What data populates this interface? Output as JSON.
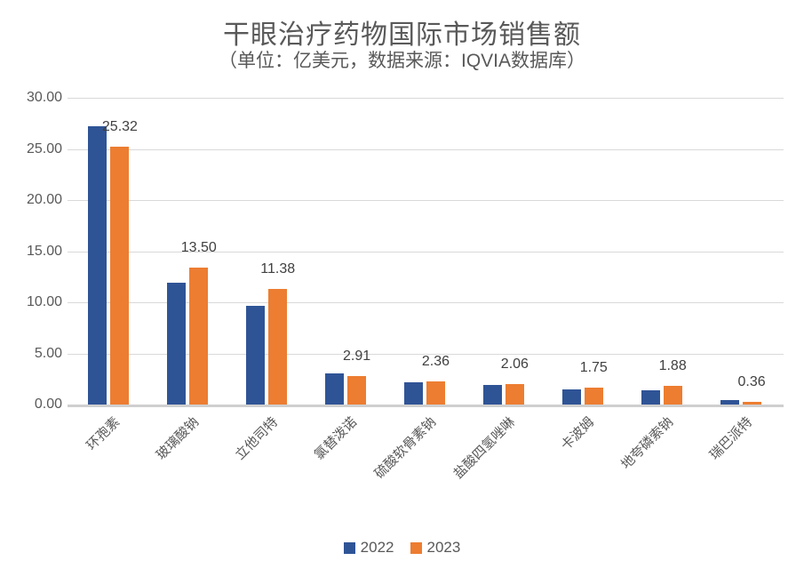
{
  "chart_data": {
    "type": "bar",
    "title": "干眼治疗药物国际市场销售额",
    "subtitle": "（单位：亿美元，数据来源：IQVIA数据库）",
    "categories": [
      "环孢素",
      "玻璃酸钠",
      "立他司特",
      "氯替泼诺",
      "硫酸软骨素钠",
      "盐酸四氢唑啉",
      "卡波姆",
      "地夸磷索钠",
      "瑞巴派特"
    ],
    "series": [
      {
        "name": "2022",
        "color": "#2F5496",
        "values": [
          27.3,
          12.0,
          9.7,
          3.1,
          2.3,
          2.0,
          1.6,
          1.5,
          0.48
        ],
        "data_labels": false
      },
      {
        "name": "2023",
        "color": "#ED7D31",
        "values": [
          25.32,
          13.5,
          11.38,
          2.91,
          2.36,
          2.06,
          1.75,
          1.88,
          0.36
        ],
        "data_labels": true,
        "label_texts": [
          "25.32",
          "13.50",
          "11.38",
          "2.91",
          "2.36",
          "2.06",
          "1.75",
          "1.88",
          "0.36"
        ]
      }
    ],
    "xlabel": "",
    "ylabel": "",
    "ylim": [
      0,
      30
    ],
    "yticks": [
      {
        "value": 0,
        "label": "0.00"
      },
      {
        "value": 5,
        "label": "5.00"
      },
      {
        "value": 10,
        "label": "10.00"
      },
      {
        "value": 15,
        "label": "15.00"
      },
      {
        "value": 20,
        "label": "20.00"
      },
      {
        "value": 25,
        "label": "25.00"
      },
      {
        "value": 30,
        "label": "30.00"
      }
    ],
    "grid": true,
    "legend_position": "bottom",
    "colors": {
      "title_text": "#595959",
      "axis_text": "#595959",
      "data_label_text": "#404040",
      "gridline": "#D9D9D9",
      "axis_line": "#CFCFCF",
      "background": "#FFFFFF"
    }
  }
}
